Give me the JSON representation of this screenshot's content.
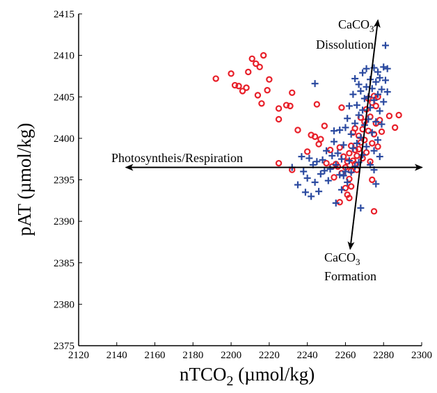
{
  "chart_data": {
    "type": "scatter",
    "x_axis": {
      "label_main": "nTCO",
      "label_sub": "2",
      "label_unit": " (µmol/kg)",
      "range": [
        2120,
        2300
      ],
      "ticks": [
        2120,
        2140,
        2160,
        2180,
        2200,
        2220,
        2240,
        2260,
        2280,
        2300
      ]
    },
    "y_axis": {
      "label": "pAT (µmol/kg)",
      "range": [
        2375,
        2415
      ],
      "ticks": [
        2375,
        2380,
        2385,
        2390,
        2395,
        2400,
        2405,
        2410,
        2415
      ]
    },
    "grid": false,
    "colors": {
      "circles": "#e8202a",
      "crosses": "#2b4aa0",
      "axes": "#000000"
    },
    "series": [
      {
        "marker": "circle",
        "points": [
          [
            2192,
            2407.2
          ],
          [
            2200,
            2407.8
          ],
          [
            2202,
            2406.4
          ],
          [
            2204,
            2406.3
          ],
          [
            2206,
            2405.7
          ],
          [
            2208,
            2406.1
          ],
          [
            2209,
            2408.0
          ],
          [
            2211,
            2409.6
          ],
          [
            2213,
            2409.0
          ],
          [
            2214,
            2405.2
          ],
          [
            2215,
            2408.6
          ],
          [
            2216,
            2404.2
          ],
          [
            2217,
            2410.0
          ],
          [
            2219,
            2405.8
          ],
          [
            2220,
            2407.1
          ],
          [
            2225,
            2403.6
          ],
          [
            2225,
            2402.3
          ],
          [
            2229,
            2404.0
          ],
          [
            2231,
            2403.9
          ],
          [
            2232,
            2405.5
          ],
          [
            2235,
            2401.0
          ],
          [
            2225,
            2397.0
          ],
          [
            2232,
            2396.2
          ],
          [
            2240,
            2398.4
          ],
          [
            2242,
            2400.4
          ],
          [
            2244,
            2400.2
          ],
          [
            2245,
            2404.1
          ],
          [
            2246,
            2399.3
          ],
          [
            2247,
            2399.9
          ],
          [
            2249,
            2401.5
          ],
          [
            2250,
            2397.0
          ],
          [
            2252,
            2398.6
          ],
          [
            2253,
            2396.6
          ],
          [
            2254,
            2395.3
          ],
          [
            2255,
            2396.9
          ],
          [
            2256,
            2396.6
          ],
          [
            2257,
            2392.3
          ],
          [
            2257,
            2398.9
          ],
          [
            2258,
            2395.8
          ],
          [
            2258,
            2403.7
          ],
          [
            2259,
            2397.8
          ],
          [
            2260,
            2394.0
          ],
          [
            2260,
            2396.5
          ],
          [
            2261,
            2393.2
          ],
          [
            2261,
            2397.2
          ],
          [
            2262,
            2392.8
          ],
          [
            2262,
            2395.1
          ],
          [
            2262,
            2398.2
          ],
          [
            2263,
            2394.2
          ],
          [
            2263,
            2396.1
          ],
          [
            2263,
            2399.1
          ],
          [
            2264,
            2397.3
          ],
          [
            2264,
            2400.7
          ],
          [
            2265,
            2396.9
          ],
          [
            2265,
            2398.6
          ],
          [
            2265,
            2401.2
          ],
          [
            2266,
            2396.2
          ],
          [
            2266,
            2397.9
          ],
          [
            2267,
            2398.7
          ],
          [
            2267,
            2400.3
          ],
          [
            2268,
            2399.5
          ],
          [
            2268,
            2402.5
          ],
          [
            2269,
            2397.6
          ],
          [
            2269,
            2401.1
          ],
          [
            2270,
            2399.8
          ],
          [
            2270,
            2402.0
          ],
          [
            2271,
            2398.3
          ],
          [
            2271,
            2403.5
          ],
          [
            2272,
            2400.9
          ],
          [
            2272,
            2404.8
          ],
          [
            2273,
            2397.2
          ],
          [
            2273,
            2402.6
          ],
          [
            2274,
            2399.4
          ],
          [
            2274,
            2404.3
          ],
          [
            2275,
            2400.5
          ],
          [
            2275,
            2405.1
          ],
          [
            2276,
            2401.8
          ],
          [
            2276,
            2403.9
          ],
          [
            2277,
            2399.0
          ],
          [
            2277,
            2405.0
          ],
          [
            2278,
            2402.2
          ],
          [
            2279,
            2400.8
          ],
          [
            2274,
            2395.0
          ],
          [
            2275,
            2391.2
          ],
          [
            2283,
            2402.7
          ],
          [
            2286,
            2401.3
          ],
          [
            2288,
            2402.8
          ]
        ]
      },
      {
        "marker": "plus",
        "points": [
          [
            2232,
            2396.5
          ],
          [
            2235,
            2394.4
          ],
          [
            2237,
            2397.8
          ],
          [
            2238,
            2396.0
          ],
          [
            2239,
            2393.5
          ],
          [
            2240,
            2395.2
          ],
          [
            2241,
            2397.6
          ],
          [
            2242,
            2393.0
          ],
          [
            2243,
            2396.8
          ],
          [
            2244,
            2394.7
          ],
          [
            2245,
            2397.2
          ],
          [
            2246,
            2393.6
          ],
          [
            2247,
            2395.7
          ],
          [
            2248,
            2397.4
          ],
          [
            2249,
            2396.1
          ],
          [
            2250,
            2398.5
          ],
          [
            2251,
            2394.9
          ],
          [
            2252,
            2396.3
          ],
          [
            2253,
            2397.9
          ],
          [
            2254,
            2399.6
          ],
          [
            2255,
            2392.2
          ],
          [
            2255,
            2396.8
          ],
          [
            2256,
            2398.2
          ],
          [
            2257,
            2395.6
          ],
          [
            2257,
            2401.0
          ],
          [
            2258,
            2397.5
          ],
          [
            2258,
            2393.8
          ],
          [
            2259,
            2399.2
          ],
          [
            2259,
            2395.5
          ],
          [
            2260,
            2401.3
          ],
          [
            2260,
            2396.0
          ],
          [
            2261,
            2402.4
          ],
          [
            2261,
            2394.7
          ],
          [
            2262,
            2397.3
          ],
          [
            2262,
            2403.9
          ],
          [
            2263,
            2395.9
          ],
          [
            2263,
            2400.5
          ],
          [
            2264,
            2398.8
          ],
          [
            2264,
            2405.3
          ],
          [
            2265,
            2396.6
          ],
          [
            2265,
            2401.8
          ],
          [
            2265,
            2407.2
          ],
          [
            2266,
            2399.4
          ],
          [
            2266,
            2404.0
          ],
          [
            2267,
            2397.1
          ],
          [
            2267,
            2402.8
          ],
          [
            2267,
            2406.5
          ],
          [
            2268,
            2400.1
          ],
          [
            2268,
            2405.7
          ],
          [
            2268,
            2391.6
          ],
          [
            2269,
            2398.0
          ],
          [
            2269,
            2403.4
          ],
          [
            2269,
            2407.9
          ],
          [
            2270,
            2401.6
          ],
          [
            2270,
            2404.8
          ],
          [
            2271,
            2399.0
          ],
          [
            2271,
            2406.2
          ],
          [
            2271,
            2408.4
          ],
          [
            2272,
            2402.3
          ],
          [
            2272,
            2405.0
          ],
          [
            2273,
            2396.8
          ],
          [
            2273,
            2403.7
          ],
          [
            2273,
            2407.1
          ],
          [
            2274,
            2400.7
          ],
          [
            2274,
            2406.0
          ],
          [
            2275,
            2398.5
          ],
          [
            2275,
            2404.6
          ],
          [
            2275,
            2408.5
          ],
          [
            2276,
            2402.0
          ],
          [
            2276,
            2406.8
          ],
          [
            2277,
            2399.8
          ],
          [
            2277,
            2405.3
          ],
          [
            2277,
            2408.0
          ],
          [
            2278,
            2403.3
          ],
          [
            2278,
            2407.3
          ],
          [
            2279,
            2401.7
          ],
          [
            2279,
            2405.9
          ],
          [
            2280,
            2404.4
          ],
          [
            2280,
            2408.6
          ],
          [
            2281,
            2407.0
          ],
          [
            2281,
            2411.2
          ],
          [
            2282,
            2405.6
          ],
          [
            2282,
            2408.4
          ],
          [
            2276,
            2394.5
          ],
          [
            2275,
            2396.2
          ],
          [
            2278,
            2397.8
          ],
          [
            2244,
            2406.6
          ],
          [
            2254,
            2400.9
          ]
        ]
      }
    ],
    "annotations": {
      "photo": "Photosyntheis/Respiration",
      "dissolution_line1": "CaCO",
      "dissolution_sub": "3",
      "dissolution_line2": "Dissolution",
      "formation_line1": "CaCO",
      "formation_sub": "3",
      "formation_line2": "Formation"
    },
    "arrows": [
      {
        "name": "photosynthesis-respiration",
        "from": [
          2145,
          2396.5
        ],
        "to": [
          2300,
          2396.5
        ],
        "double_headed": true
      },
      {
        "name": "caco3-dissolution-formation",
        "from": [
          2262.5,
          2386.7
        ],
        "to": [
          2277,
          2414.2
        ],
        "double_headed": true
      }
    ]
  }
}
